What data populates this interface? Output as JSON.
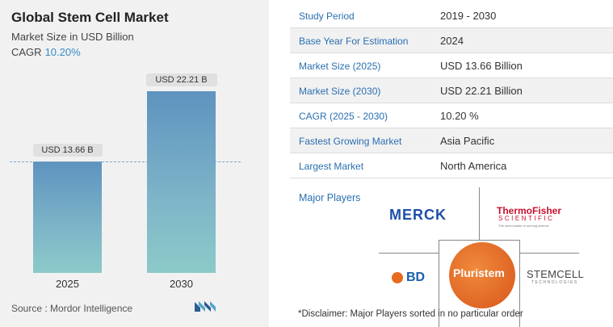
{
  "header": {
    "title": "Global Stem Cell Market",
    "subtitle": "Market Size in USD Billion",
    "cagr_label": "CAGR",
    "cagr_value": "10.20%"
  },
  "chart_data": {
    "type": "bar",
    "categories": [
      "2025",
      "2030"
    ],
    "values": [
      13.66,
      22.21
    ],
    "data_labels": [
      "USD 13.66 B",
      "USD 22.21 B"
    ],
    "title": "Global Stem Cell Market",
    "subtitle": "Market Size in USD Billion",
    "ylim": [
      0,
      22.21
    ],
    "grid": false,
    "reference_line_at": 13.66
  },
  "footer": {
    "source": "Source :  Mordor Intelligence"
  },
  "table": {
    "rows": [
      {
        "key": "Study Period",
        "value": "2019 - 2030"
      },
      {
        "key": "Base Year For Estimation",
        "value": "2024"
      },
      {
        "key": "Market Size (2025)",
        "value": "USD 13.66 Billion"
      },
      {
        "key": "Market Size (2030)",
        "value": "USD 22.21 Billion"
      },
      {
        "key": "CAGR (2025 - 2030)",
        "value": "10.20 %"
      },
      {
        "key": "Fastest Growing Market",
        "value": "Asia Pacific"
      },
      {
        "key": "Largest Market",
        "value": "North America"
      }
    ]
  },
  "players": {
    "label": "Major Players",
    "merck": "MERCK",
    "thermo_line1": "ThermoFisher",
    "thermo_line2": "SCIENTIFIC",
    "thermo_line3": "The world leader in serving science",
    "bd": "BD",
    "pluristem": "Pluristem",
    "stemcell": "STEMCELL",
    "stemcell_sub": "TECHNOLOGIES"
  },
  "disclaimer": "*Disclaimer: Major Players sorted in no particular order",
  "colors": {
    "bar": "#6aa3c4",
    "accent": "#3a8cc4",
    "merck": "#1e4fa8",
    "thermo": "#c8102e",
    "pluristem": "#e0682a"
  }
}
